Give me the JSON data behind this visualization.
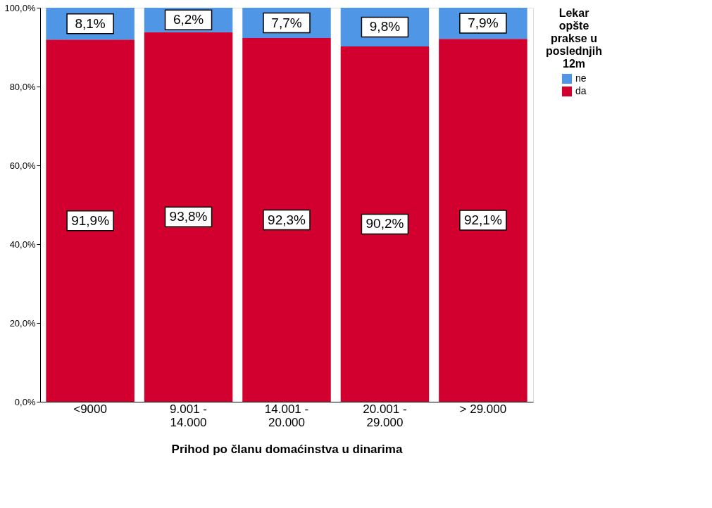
{
  "chart_data": {
    "type": "bar",
    "stacked": true,
    "xlabel": "Prihod po članu domaćinstva u dinarima",
    "legend_title": "Lekar opšte prakse u poslednjih 12m",
    "legend": "top right",
    "grid": false,
    "categories": [
      "<9000",
      "9.001 -\n14.000",
      "14.001 -\n20.000",
      "20.001 -\n29.000",
      "> 29.000"
    ],
    "ylim": [
      0,
      100
    ],
    "yticks": [
      {
        "value": 0,
        "label": "0,0%"
      },
      {
        "value": 20,
        "label": "20,0%"
      },
      {
        "value": 40,
        "label": "40,0%"
      },
      {
        "value": 60,
        "label": "60,0%"
      },
      {
        "value": 80,
        "label": "80,0%"
      },
      {
        "value": 100,
        "label": "100,0%"
      }
    ],
    "series": [
      {
        "name": "da",
        "color": "#d1002f",
        "values": [
          91.9,
          93.8,
          92.3,
          90.2,
          92.1
        ],
        "value_labels": [
          "91,9%",
          "93,8%",
          "92,3%",
          "90,2%",
          "92,1%"
        ]
      },
      {
        "name": "ne",
        "color": "#5096e6",
        "values": [
          8.1,
          6.2,
          7.7,
          9.8,
          7.9
        ],
        "value_labels": [
          "8,1%",
          "6,2%",
          "7,7%",
          "9,8%",
          "7,9%"
        ]
      }
    ]
  }
}
